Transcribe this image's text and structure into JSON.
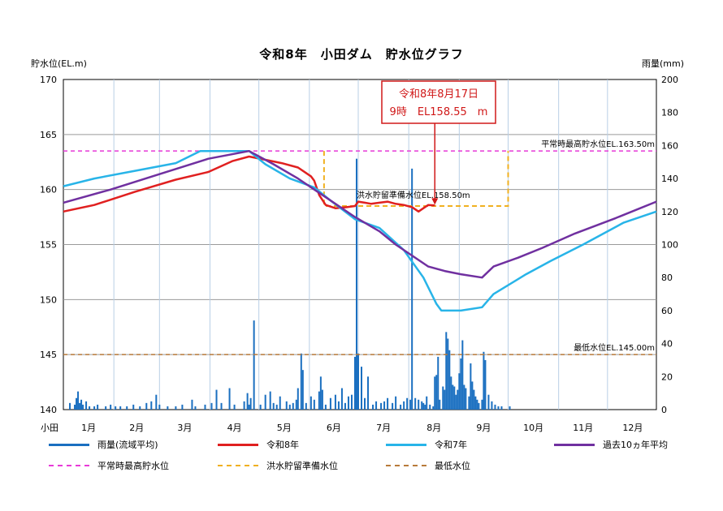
{
  "chart_data": {
    "type": "line",
    "title": "令和8年　小田ダム　貯水位グラフ",
    "ylabel_left": "貯水位(EL.m)",
    "ylabel_right": "雨量(mm)",
    "x_first_label": "小田",
    "months": [
      "1月",
      "2月",
      "3月",
      "4月",
      "5月",
      "6月",
      "7月",
      "8月",
      "9月",
      "10月",
      "11月",
      "12月"
    ],
    "y_left_ticks": [
      140,
      145,
      150,
      155,
      160,
      165,
      170
    ],
    "y_left_range": [
      140,
      170
    ],
    "y_right_ticks": [
      0,
      20,
      40,
      60,
      80,
      100,
      120,
      140,
      160,
      180,
      200
    ],
    "y_right_range": [
      0,
      200
    ],
    "grid": true,
    "reference_lines": [
      {
        "name": "平常時最高貯水位",
        "label": "平常時最高貯水位EL.163.50m",
        "value": 163.5,
        "color": "#e83ad8"
      },
      {
        "name": "最低水位",
        "label": "最低水位EL.145.00m",
        "value": 145.0,
        "color": "#b87a3a"
      }
    ],
    "flood_reserve": {
      "name": "洪水貯留準備水位",
      "label": "洪水貯留準備水位EL.158.50m",
      "value": 158.5,
      "upper": 163.5,
      "start_day": 161,
      "end_day": 274,
      "color": "#f0b020"
    },
    "annotation": {
      "line1": "令和8年8月17日",
      "line2": "9時　EL158.55　m",
      "day": 229,
      "value": 158.55
    },
    "series": [
      {
        "name": "令和8年",
        "color": "#e02020",
        "points": [
          [
            1,
            158.0
          ],
          [
            20,
            158.6
          ],
          [
            45,
            159.8
          ],
          [
            70,
            160.9
          ],
          [
            90,
            161.6
          ],
          [
            105,
            162.6
          ],
          [
            115,
            163.0
          ],
          [
            125,
            162.7
          ],
          [
            135,
            162.4
          ],
          [
            145,
            162.0
          ],
          [
            150,
            161.5
          ],
          [
            153,
            161.2
          ],
          [
            155,
            160.8
          ],
          [
            158,
            159.5
          ],
          [
            162,
            158.6
          ],
          [
            168,
            158.3
          ],
          [
            175,
            158.4
          ],
          [
            180,
            158.5
          ],
          [
            182,
            158.9
          ],
          [
            186,
            158.8
          ],
          [
            190,
            158.7
          ],
          [
            195,
            158.8
          ],
          [
            200,
            158.9
          ],
          [
            205,
            158.7
          ],
          [
            210,
            158.6
          ],
          [
            215,
            158.4
          ],
          [
            219,
            158.0
          ],
          [
            222,
            158.3
          ],
          [
            225,
            158.6
          ],
          [
            229,
            158.55
          ]
        ]
      },
      {
        "name": "令和7年",
        "color": "#28b4e8",
        "points": [
          [
            1,
            160.3
          ],
          [
            20,
            161.0
          ],
          [
            45,
            161.7
          ],
          [
            70,
            162.4
          ],
          [
            85,
            163.5
          ],
          [
            115,
            163.5
          ],
          [
            125,
            162.3
          ],
          [
            140,
            161.0
          ],
          [
            155,
            160.2
          ],
          [
            165,
            159.0
          ],
          [
            180,
            157.3
          ],
          [
            195,
            156.5
          ],
          [
            210,
            154.5
          ],
          [
            222,
            152.0
          ],
          [
            230,
            149.6
          ],
          [
            233,
            149.0
          ],
          [
            245,
            149.0
          ],
          [
            258,
            149.3
          ],
          [
            265,
            150.5
          ],
          [
            285,
            152.3
          ],
          [
            300,
            153.5
          ],
          [
            320,
            155.0
          ],
          [
            345,
            157.0
          ],
          [
            365,
            158.0
          ]
        ]
      },
      {
        "name": "過去10ヵ年平均",
        "color": "#7030a0",
        "points": [
          [
            1,
            158.8
          ],
          [
            30,
            160.0
          ],
          [
            60,
            161.4
          ],
          [
            90,
            162.8
          ],
          [
            115,
            163.5
          ],
          [
            130,
            162.3
          ],
          [
            145,
            161.0
          ],
          [
            165,
            159.0
          ],
          [
            180,
            157.5
          ],
          [
            195,
            156.2
          ],
          [
            205,
            155.0
          ],
          [
            215,
            154.0
          ],
          [
            225,
            153.0
          ],
          [
            235,
            152.6
          ],
          [
            245,
            152.3
          ],
          [
            258,
            152.0
          ],
          [
            265,
            153.0
          ],
          [
            280,
            153.8
          ],
          [
            295,
            154.7
          ],
          [
            315,
            156.0
          ],
          [
            340,
            157.4
          ],
          [
            365,
            158.9
          ]
        ]
      }
    ],
    "rain": {
      "name": "雨量(流域平均)",
      "color": "#1a6fc0",
      "days": [
        [
          5,
          4
        ],
        [
          8,
          3
        ],
        [
          9,
          7
        ],
        [
          10,
          11
        ],
        [
          11,
          4
        ],
        [
          12,
          6
        ],
        [
          13,
          3
        ],
        [
          15,
          5
        ],
        [
          17,
          2
        ],
        [
          20,
          2
        ],
        [
          22,
          3
        ],
        [
          27,
          2
        ],
        [
          30,
          3
        ],
        [
          33,
          2
        ],
        [
          36,
          2
        ],
        [
          40,
          2
        ],
        [
          44,
          3
        ],
        [
          48,
          2
        ],
        [
          52,
          4
        ],
        [
          55,
          5
        ],
        [
          58,
          9
        ],
        [
          60,
          3
        ],
        [
          65,
          2
        ],
        [
          70,
          2
        ],
        [
          74,
          3
        ],
        [
          80,
          6
        ],
        [
          82,
          2
        ],
        [
          88,
          3
        ],
        [
          92,
          4
        ],
        [
          95,
          12
        ],
        [
          98,
          4
        ],
        [
          103,
          13
        ],
        [
          106,
          3
        ],
        [
          112,
          5
        ],
        [
          114,
          10
        ],
        [
          115,
          3
        ],
        [
          116,
          7
        ],
        [
          118,
          54
        ],
        [
          122,
          3
        ],
        [
          125,
          9
        ],
        [
          128,
          11
        ],
        [
          130,
          4
        ],
        [
          132,
          3
        ],
        [
          134,
          8
        ],
        [
          138,
          5
        ],
        [
          140,
          3
        ],
        [
          142,
          4
        ],
        [
          144,
          6
        ],
        [
          145,
          13
        ],
        [
          147,
          34
        ],
        [
          148,
          24
        ],
        [
          150,
          4
        ],
        [
          153,
          8
        ],
        [
          155,
          6
        ],
        [
          158,
          11
        ],
        [
          159,
          20
        ],
        [
          160,
          12
        ],
        [
          162,
          3
        ],
        [
          165,
          7
        ],
        [
          168,
          9
        ],
        [
          170,
          5
        ],
        [
          172,
          13
        ],
        [
          174,
          4
        ],
        [
          176,
          8
        ],
        [
          178,
          9
        ],
        [
          180,
          32
        ],
        [
          181,
          152
        ],
        [
          182,
          34
        ],
        [
          184,
          26
        ],
        [
          186,
          7
        ],
        [
          188,
          20
        ],
        [
          191,
          3
        ],
        [
          193,
          5
        ],
        [
          196,
          4
        ],
        [
          198,
          5
        ],
        [
          200,
          7
        ],
        [
          203,
          4
        ],
        [
          205,
          8
        ],
        [
          208,
          3
        ],
        [
          210,
          5
        ],
        [
          212,
          7
        ],
        [
          214,
          6
        ],
        [
          215,
          146
        ],
        [
          217,
          7
        ],
        [
          219,
          6
        ],
        [
          221,
          5
        ],
        [
          222,
          4
        ],
        [
          223,
          3
        ],
        [
          224,
          8
        ],
        [
          226,
          3
        ],
        [
          228,
          2
        ],
        [
          229,
          20
        ],
        [
          230,
          21
        ],
        [
          231,
          32
        ],
        [
          232,
          6
        ],
        [
          234,
          14
        ],
        [
          235,
          12
        ],
        [
          236,
          47
        ],
        [
          237,
          43
        ],
        [
          238,
          36
        ],
        [
          239,
          20
        ],
        [
          240,
          15
        ],
        [
          241,
          14
        ],
        [
          242,
          9
        ],
        [
          243,
          12
        ],
        [
          244,
          22
        ],
        [
          245,
          31
        ],
        [
          246,
          42
        ],
        [
          247,
          15
        ],
        [
          248,
          13
        ],
        [
          250,
          8
        ],
        [
          251,
          28
        ],
        [
          252,
          17
        ],
        [
          253,
          12
        ],
        [
          254,
          8
        ],
        [
          255,
          6
        ],
        [
          256,
          4
        ],
        [
          258,
          6
        ],
        [
          259,
          35
        ],
        [
          260,
          30
        ],
        [
          262,
          9
        ],
        [
          264,
          5
        ],
        [
          266,
          3
        ],
        [
          268,
          2
        ],
        [
          270,
          2
        ],
        [
          275,
          2
        ]
      ]
    }
  },
  "legend": {
    "rain": "雨量(流域平均)",
    "r8": "令和8年",
    "r7": "令和7年",
    "avg": "過去10ヵ年平均",
    "normal_max": "平常時最高貯水位",
    "flood_reserve": "洪水貯留準備水位",
    "min_level": "最低水位"
  }
}
